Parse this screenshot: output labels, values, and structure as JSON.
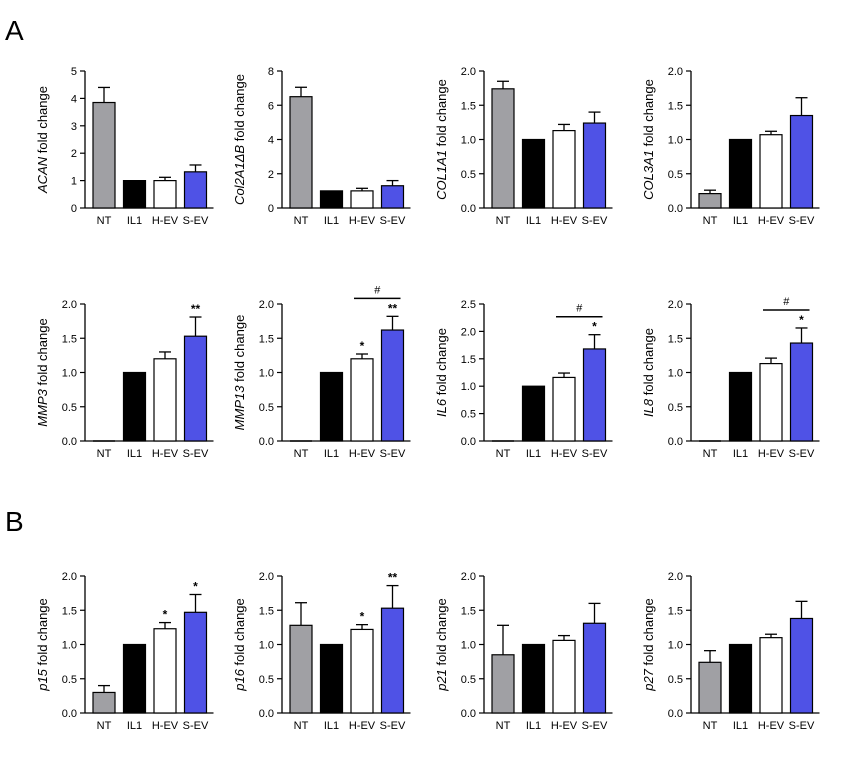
{
  "figure": {
    "panel_labels": [
      "A",
      "B"
    ]
  },
  "chart_data": [
    {
      "type": "bar",
      "gene": "ACAN",
      "ylabel_suffix": " fold change",
      "categories": [
        "NT",
        "IL1",
        "H-EV",
        "S-EV"
      ],
      "values": [
        3.85,
        1.0,
        1.0,
        1.32
      ],
      "errors": [
        0.55,
        0,
        0.12,
        0.25
      ],
      "ylim": [
        0,
        5
      ],
      "yticks": [
        "0",
        "1",
        "2",
        "3",
        "4",
        "5"
      ],
      "annotations": [
        "",
        "",
        "",
        ""
      ],
      "bracket": null,
      "colors": [
        "#a0a0a4",
        "#000000",
        "#ffffff",
        "#4f52e6"
      ]
    },
    {
      "type": "bar",
      "gene": "Col2A1ΔB",
      "ylabel_suffix": " fold change",
      "categories": [
        "NT",
        "IL1",
        "H-EV",
        "S-EV"
      ],
      "values": [
        6.5,
        1.0,
        1.0,
        1.3
      ],
      "errors": [
        0.55,
        0,
        0.15,
        0.3
      ],
      "ylim": [
        0,
        8
      ],
      "yticks": [
        "0",
        "2",
        "4",
        "6",
        "8"
      ],
      "annotations": [
        "",
        "",
        "",
        ""
      ],
      "bracket": null,
      "colors": [
        "#a0a0a4",
        "#000000",
        "#ffffff",
        "#4f52e6"
      ]
    },
    {
      "type": "bar",
      "gene": "COL1A1",
      "ylabel_suffix": " fold change",
      "categories": [
        "NT",
        "IL1",
        "H-EV",
        "S-EV"
      ],
      "values": [
        1.74,
        1.0,
        1.13,
        1.24
      ],
      "errors": [
        0.11,
        0,
        0.09,
        0.16
      ],
      "ylim": [
        0,
        2.0
      ],
      "yticks": [
        "0.0",
        "0.5",
        "1.0",
        "1.5",
        "2.0"
      ],
      "annotations": [
        "",
        "",
        "",
        ""
      ],
      "bracket": null,
      "colors": [
        "#a0a0a4",
        "#000000",
        "#ffffff",
        "#4f52e6"
      ]
    },
    {
      "type": "bar",
      "gene": "COL3A1",
      "ylabel_suffix": " fold change",
      "categories": [
        "NT",
        "IL1",
        "H-EV",
        "S-EV"
      ],
      "values": [
        0.21,
        1.0,
        1.07,
        1.35
      ],
      "errors": [
        0.05,
        0,
        0.05,
        0.26
      ],
      "ylim": [
        0,
        2.0
      ],
      "yticks": [
        "0.0",
        "0.5",
        "1.0",
        "1.5",
        "2.0"
      ],
      "annotations": [
        "",
        "",
        "",
        ""
      ],
      "bracket": null,
      "colors": [
        "#a0a0a4",
        "#000000",
        "#ffffff",
        "#4f52e6"
      ]
    },
    {
      "type": "bar",
      "gene": "MMP3",
      "ylabel_suffix": " fold change",
      "categories": [
        "NT",
        "IL1",
        "H-EV",
        "S-EV"
      ],
      "values": [
        0,
        1.0,
        1.2,
        1.53
      ],
      "errors": [
        0,
        0,
        0.1,
        0.28
      ],
      "ylim": [
        0,
        2.0
      ],
      "yticks": [
        "0.0",
        "0.5",
        "1.0",
        "1.5",
        "2.0"
      ],
      "annotations": [
        "",
        "",
        "",
        "**"
      ],
      "bracket": null,
      "colors": [
        "#a0a0a4",
        "#000000",
        "#ffffff",
        "#4f52e6"
      ]
    },
    {
      "type": "bar",
      "gene": "MMP13",
      "ylabel_suffix": " fold change",
      "categories": [
        "NT",
        "IL1",
        "H-EV",
        "S-EV"
      ],
      "values": [
        0,
        1.0,
        1.2,
        1.62
      ],
      "errors": [
        0,
        0,
        0.07,
        0.2
      ],
      "ylim": [
        0,
        2.0
      ],
      "yticks": [
        "0.0",
        "0.5",
        "1.0",
        "1.5",
        "2.0"
      ],
      "annotations": [
        "",
        "",
        "*",
        "**"
      ],
      "bracket": {
        "from": 2,
        "to": 3,
        "label": "#"
      },
      "colors": [
        "#a0a0a4",
        "#000000",
        "#ffffff",
        "#4f52e6"
      ]
    },
    {
      "type": "bar",
      "gene": "IL6",
      "ylabel_suffix": " fold change",
      "categories": [
        "NT",
        "IL1",
        "H-EV",
        "S-EV"
      ],
      "values": [
        0,
        1.0,
        1.16,
        1.68
      ],
      "errors": [
        0,
        0,
        0.08,
        0.26
      ],
      "ylim": [
        0,
        2.5
      ],
      "yticks": [
        "0.0",
        "0.5",
        "1.0",
        "1.5",
        "2.0",
        "2.5"
      ],
      "annotations": [
        "",
        "",
        "",
        "*"
      ],
      "bracket": {
        "from": 2,
        "to": 3,
        "label": "#"
      },
      "colors": [
        "#a0a0a4",
        "#000000",
        "#ffffff",
        "#4f52e6"
      ]
    },
    {
      "type": "bar",
      "gene": "IL8",
      "ylabel_suffix": " fold change",
      "categories": [
        "NT",
        "IL1",
        "H-EV",
        "S-EV"
      ],
      "values": [
        0,
        1.0,
        1.13,
        1.43
      ],
      "errors": [
        0,
        0,
        0.08,
        0.22
      ],
      "ylim": [
        0,
        2.0
      ],
      "yticks": [
        "0.0",
        "0.5",
        "1.0",
        "1.5",
        "2.0"
      ],
      "annotations": [
        "",
        "",
        "",
        "*"
      ],
      "bracket": {
        "from": 2,
        "to": 3,
        "label": "#"
      },
      "colors": [
        "#a0a0a4",
        "#000000",
        "#ffffff",
        "#4f52e6"
      ]
    },
    {
      "type": "bar",
      "gene": "p15",
      "ylabel_suffix": " fold change",
      "categories": [
        "NT",
        "IL1",
        "H-EV",
        "S-EV"
      ],
      "values": [
        0.3,
        1.0,
        1.23,
        1.47
      ],
      "errors": [
        0.1,
        0,
        0.09,
        0.26
      ],
      "ylim": [
        0,
        2.0
      ],
      "yticks": [
        "0.0",
        "0.5",
        "1.0",
        "1.5",
        "2.0"
      ],
      "annotations": [
        "",
        "",
        "*",
        "*"
      ],
      "bracket": null,
      "colors": [
        "#a0a0a4",
        "#000000",
        "#ffffff",
        "#4f52e6"
      ]
    },
    {
      "type": "bar",
      "gene": "p16",
      "ylabel_suffix": " fold change",
      "categories": [
        "NT",
        "IL1",
        "H-EV",
        "S-EV"
      ],
      "values": [
        1.28,
        1.0,
        1.22,
        1.53
      ],
      "errors": [
        0.33,
        0,
        0.07,
        0.33
      ],
      "ylim": [
        0,
        2.0
      ],
      "yticks": [
        "0.0",
        "0.5",
        "1.0",
        "1.5",
        "2.0"
      ],
      "annotations": [
        "",
        "",
        "*",
        "**"
      ],
      "bracket": null,
      "colors": [
        "#a0a0a4",
        "#000000",
        "#ffffff",
        "#4f52e6"
      ]
    },
    {
      "type": "bar",
      "gene": "p21",
      "ylabel_suffix": " fold change",
      "categories": [
        "NT",
        "IL1",
        "H-EV",
        "S-EV"
      ],
      "values": [
        0.85,
        1.0,
        1.06,
        1.31
      ],
      "errors": [
        0.43,
        0,
        0.07,
        0.29
      ],
      "ylim": [
        0,
        2.0
      ],
      "yticks": [
        "0.0",
        "0.5",
        "1.0",
        "1.5",
        "2.0"
      ],
      "annotations": [
        "",
        "",
        "",
        ""
      ],
      "bracket": null,
      "colors": [
        "#a0a0a4",
        "#000000",
        "#ffffff",
        "#4f52e6"
      ]
    },
    {
      "type": "bar",
      "gene": "p27",
      "ylabel_suffix": " fold change",
      "categories": [
        "NT",
        "IL1",
        "H-EV",
        "S-EV"
      ],
      "values": [
        0.74,
        1.0,
        1.1,
        1.38
      ],
      "errors": [
        0.17,
        0,
        0.05,
        0.25
      ],
      "ylim": [
        0,
        2.0
      ],
      "yticks": [
        "0.0",
        "0.5",
        "1.0",
        "1.5",
        "2.0"
      ],
      "annotations": [
        "",
        "",
        "",
        ""
      ],
      "bracket": null,
      "colors": [
        "#a0a0a4",
        "#000000",
        "#ffffff",
        "#4f52e6"
      ]
    }
  ]
}
